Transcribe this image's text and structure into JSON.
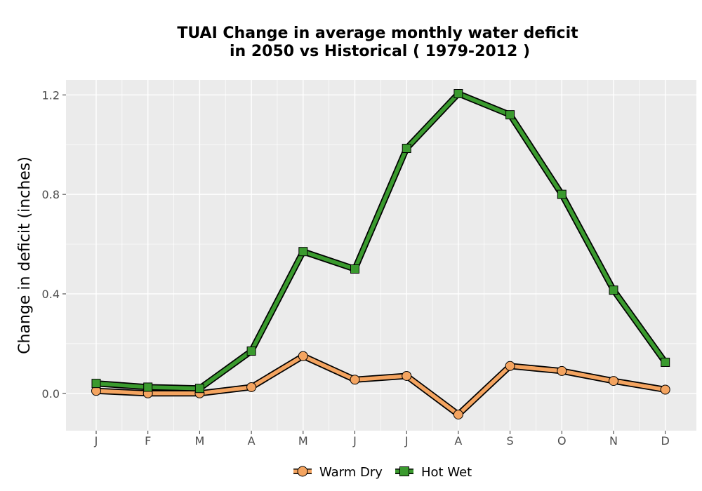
{
  "chart_data": {
    "type": "line",
    "title": "TUAI  Change in average monthly water deficit in 2050 vs Historical ( 1979-2012 )",
    "title_lines": [
      "TUAI  Change in average monthly water deficit",
      "in 2050 vs Historical ( 1979-2012 )"
    ],
    "xlabel": "",
    "ylabel": "Change in deficit (inches)",
    "categories": [
      "J",
      "F",
      "M",
      "A",
      "M",
      "J",
      "J",
      "A",
      "S",
      "O",
      "N",
      "D"
    ],
    "ylim": [
      -0.15,
      1.26
    ],
    "yticks": [
      0.0,
      0.4,
      0.8,
      1.2
    ],
    "ytick_labels": [
      "0.0",
      "0.4",
      "0.8",
      "1.2"
    ],
    "grid": true,
    "legend_position": "bottom",
    "series": [
      {
        "name": "Warm Dry",
        "marker": "circle",
        "color": "#f4a460",
        "values": [
          0.01,
          0.0,
          0.0,
          0.025,
          0.15,
          0.055,
          0.07,
          -0.085,
          0.11,
          0.09,
          0.05,
          0.015
        ]
      },
      {
        "name": "Hot Wet",
        "marker": "square",
        "color": "#3a9a2e",
        "values": [
          0.04,
          0.025,
          0.02,
          0.17,
          0.57,
          0.5,
          0.985,
          1.205,
          1.12,
          0.8,
          0.415,
          0.125
        ]
      }
    ]
  },
  "colors": {
    "panel_background": "#ebebeb",
    "grid": "#ffffff",
    "outline": "#000000"
  }
}
